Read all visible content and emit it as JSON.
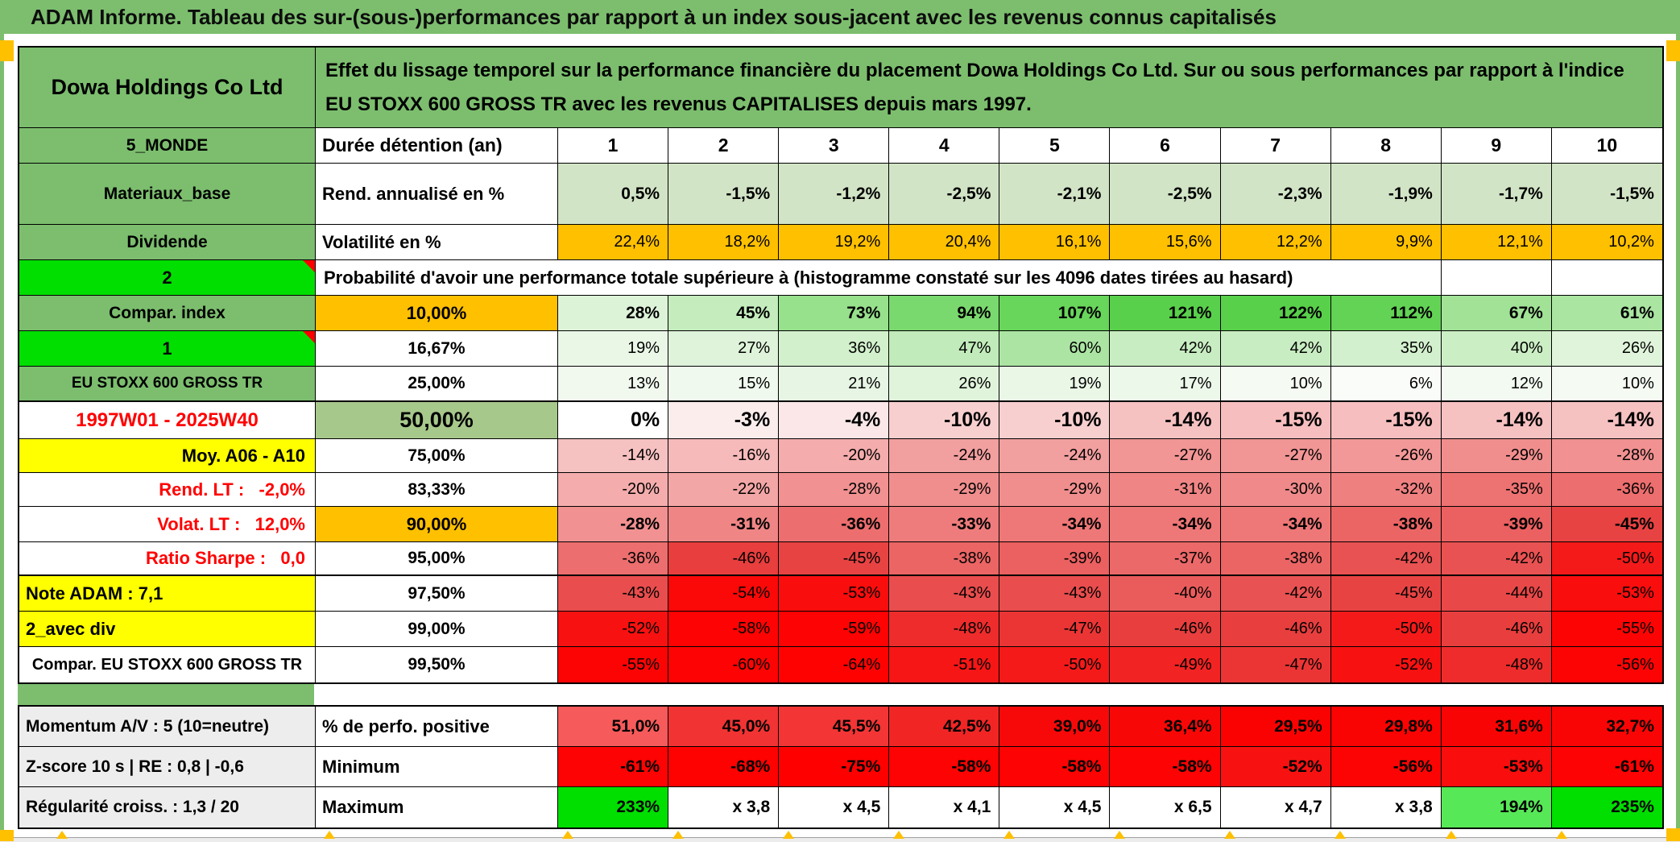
{
  "window": {
    "title": "ADAM Informe. Tableau des sur-(sous-)performances par rapport à un index sous-jacent avec les revenus connus capitalisés"
  },
  "palette": {
    "header_green": "#7CBE6E",
    "bright_green": "#00DF00",
    "light_green_max": "#57E857",
    "orange": "#FFC000",
    "yellow": "#FFFF00",
    "red_text": "#FF0000",
    "green_50pct_cell": "#A7C88B",
    "light_green_row": "#D2E4C6",
    "gray_label": "#EDEDED"
  },
  "header": {
    "company": "Dowa Holdings Co Ltd",
    "description": "Effet du lissage temporel sur la performance financière du placement Dowa Holdings Co Ltd. Sur ou sous performances par rapport à l'indice EU STOXX 600 GROSS TR avec les revenus CAPITALISES depuis mars 1997."
  },
  "matrix": {
    "col_a_header": "5_MONDE",
    "col_b_header": "Durée détention (an)",
    "years": [
      "1",
      "2",
      "3",
      "4",
      "5",
      "6",
      "7",
      "8",
      "9",
      "10"
    ],
    "rows": [
      {
        "label": "Materiaux_base",
        "label_style": "green",
        "b": "Rend. annualisé en %",
        "b_style": "left",
        "values": [
          "0,5%",
          "-1,5%",
          "-1,2%",
          "-2,5%",
          "-2,1%",
          "-2,5%",
          "-2,3%",
          "-1,9%",
          "-1,7%",
          "-1,5%"
        ],
        "fill": "lightgreen",
        "bold": true
      },
      {
        "label": "Dividende",
        "label_style": "green",
        "b": "Volatilité en %",
        "b_style": "left",
        "values": [
          "22,4%",
          "18,2%",
          "19,2%",
          "20,4%",
          "16,1%",
          "15,6%",
          "12,2%",
          "9,9%",
          "12,1%",
          "10,2%"
        ],
        "fill": "orange"
      },
      {
        "label": "2",
        "label_style": "bright",
        "comment": true,
        "banner": "Probabilité d'avoir une performance totale supérieure à (histogramme constaté sur les 4096 dates tirées au hasard)",
        "trailing_empty": 2
      },
      {
        "label": "Compar. index",
        "label_style": "green",
        "b": "10,00%",
        "b_style": "center orange",
        "values": [
          "28%",
          "45%",
          "73%",
          "94%",
          "107%",
          "121%",
          "122%",
          "112%",
          "67%",
          "61%"
        ],
        "scale": "prob",
        "bold": true
      },
      {
        "label": "1",
        "label_style": "bright",
        "comment": true,
        "b": "16,67%",
        "b_style": "center",
        "values": [
          "19%",
          "27%",
          "36%",
          "47%",
          "60%",
          "42%",
          "42%",
          "35%",
          "40%",
          "26%"
        ],
        "scale": "prob"
      },
      {
        "label": "EU STOXX 600 GROSS TR",
        "label_style": "green small",
        "b": "25,00%",
        "b_style": "center",
        "values": [
          "13%",
          "15%",
          "21%",
          "26%",
          "19%",
          "17%",
          "10%",
          "6%",
          "12%",
          "10%"
        ],
        "scale": "prob",
        "thick_bottom": true
      },
      {
        "label": "1997W01 - 2025W40",
        "label_style": "red-center",
        "b": "50,00%",
        "b_style": "center green50",
        "values": [
          "0%",
          "-3%",
          "-4%",
          "-10%",
          "-10%",
          "-14%",
          "-15%",
          "-15%",
          "-14%",
          "-14%"
        ],
        "scale": "prob",
        "bold": true,
        "large": true
      },
      {
        "label": "Moy. A06 - A10",
        "label_style": "yellow-right",
        "b": "75,00%",
        "b_style": "center",
        "values": [
          "-14%",
          "-16%",
          "-20%",
          "-24%",
          "-24%",
          "-27%",
          "-27%",
          "-26%",
          "-29%",
          "-28%"
        ],
        "scale": "prob"
      },
      {
        "label": "Rend. LT :   -2,0%",
        "label_style": "red-right",
        "b": "83,33%",
        "b_style": "center",
        "values": [
          "-20%",
          "-22%",
          "-28%",
          "-29%",
          "-29%",
          "-31%",
          "-30%",
          "-32%",
          "-35%",
          "-36%"
        ],
        "scale": "prob"
      },
      {
        "label": "Volat. LT :   12,0%",
        "label_style": "red-right",
        "b": "90,00%",
        "b_style": "center orange",
        "values": [
          "-28%",
          "-31%",
          "-36%",
          "-33%",
          "-34%",
          "-34%",
          "-34%",
          "-38%",
          "-39%",
          "-45%"
        ],
        "scale": "prob",
        "bold": true
      },
      {
        "label": "Ratio Sharpe :   0,0",
        "label_style": "red-right",
        "b": "95,00%",
        "b_style": "center",
        "values": [
          "-36%",
          "-46%",
          "-45%",
          "-38%",
          "-39%",
          "-37%",
          "-38%",
          "-42%",
          "-42%",
          "-50%"
        ],
        "scale": "prob",
        "thick_bottom": true
      },
      {
        "label": "Note ADAM : 7,1",
        "label_style": "yellow-left",
        "b": "97,50%",
        "b_style": "center",
        "values": [
          "-43%",
          "-54%",
          "-53%",
          "-43%",
          "-43%",
          "-40%",
          "-42%",
          "-45%",
          "-44%",
          "-53%"
        ],
        "scale": "prob"
      },
      {
        "label": "2_avec div",
        "label_style": "yellow-left",
        "b": "99,00%",
        "b_style": "center",
        "values": [
          "-52%",
          "-58%",
          "-59%",
          "-48%",
          "-47%",
          "-46%",
          "-46%",
          "-50%",
          "-46%",
          "-55%"
        ],
        "scale": "prob"
      },
      {
        "label": "Compar. EU STOXX 600 GROSS TR",
        "label_style": "white-center",
        "b": "99,50%",
        "b_style": "center",
        "values": [
          "-55%",
          "-60%",
          "-64%",
          "-51%",
          "-50%",
          "-49%",
          "-47%",
          "-52%",
          "-48%",
          "-56%"
        ],
        "scale": "prob"
      }
    ]
  },
  "bottom": {
    "rows": [
      {
        "label": "Momentum A/V : 5 (10=neutre)",
        "b": "% de perfo. positive",
        "values": [
          "51,0%",
          "45,0%",
          "45,5%",
          "42,5%",
          "39,0%",
          "36,4%",
          "29,5%",
          "29,8%",
          "31,6%",
          "32,7%"
        ],
        "scale": "perfo",
        "bold": true
      },
      {
        "label": "Z-score 10 s | RE : 0,8 | -0,6",
        "b": "Minimum",
        "values": [
          "-61%",
          "-68%",
          "-75%",
          "-58%",
          "-58%",
          "-58%",
          "-52%",
          "-56%",
          "-53%",
          "-61%"
        ],
        "scale": "prob",
        "bold": true
      },
      {
        "label": "Régularité croiss. : 1,3 / 20",
        "b": "Maximum",
        "values": [
          "233%",
          "x 3,8",
          "x 4,5",
          "x 4,1",
          "x 4,5",
          "x 6,5",
          "x 4,7",
          "x 3,8",
          "194%",
          "235%"
        ],
        "scale": "explicit",
        "colors": [
          "#00DF00",
          null,
          null,
          null,
          null,
          null,
          null,
          null,
          "#57E857",
          "#00DF00"
        ],
        "bold": true
      }
    ]
  }
}
